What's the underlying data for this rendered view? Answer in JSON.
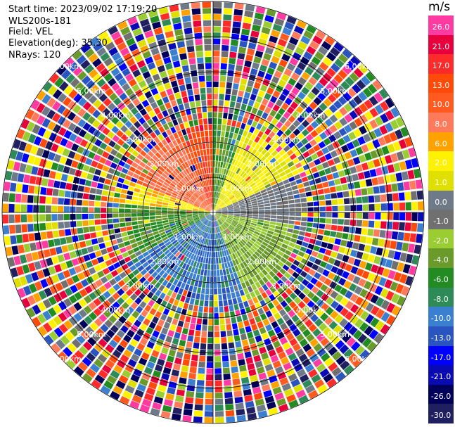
{
  "header": {
    "start_time": "Start time: 2023/09/02 17:19:20",
    "instrument": "WLS200s-181",
    "field": "Field: VEL",
    "elevation": "Elevation(deg): 35.30",
    "nrays": "NRays: 120"
  },
  "colorbar": {
    "unit": "m/s",
    "bins": [
      {
        "label": "26.0",
        "color": "#ff3aa0"
      },
      {
        "label": "21.0",
        "color": "#e8003c"
      },
      {
        "label": "17.0",
        "color": "#ff2a2a"
      },
      {
        "label": "13.0",
        "color": "#ff4a0a"
      },
      {
        "label": "10.0",
        "color": "#ff5a20"
      },
      {
        "label": "8.0",
        "color": "#ff7a5a"
      },
      {
        "label": "6.0",
        "color": "#ffa200"
      },
      {
        "label": "2.0",
        "color": "#fff200"
      },
      {
        "label": "1.0",
        "color": "#e0e000"
      },
      {
        "label": "0.0",
        "color": "#6e7a88"
      },
      {
        "label": "-1.0",
        "color": "#707070"
      },
      {
        "label": "-2.0",
        "color": "#9acd32"
      },
      {
        "label": "-4.0",
        "color": "#6a9a2a"
      },
      {
        "label": "-6.0",
        "color": "#228b22"
      },
      {
        "label": "-8.0",
        "color": "#2e8b57"
      },
      {
        "label": "-10.0",
        "color": "#3a7fd0"
      },
      {
        "label": "-13.0",
        "color": "#2a55c0"
      },
      {
        "label": "-17.0",
        "color": "#0000ff"
      },
      {
        "label": "-21.0",
        "color": "#0a0ab4"
      },
      {
        "label": "-26.0",
        "color": "#00005a"
      },
      {
        "label": "-30.0",
        "color": "#202060"
      }
    ]
  },
  "chart_data": {
    "type": "heatmap",
    "plot": "ppi",
    "field": "VEL",
    "unit": "m/s",
    "n_rays": 120,
    "max_range_km": 6.0,
    "range_rings_km": [
      1,
      2,
      3,
      4,
      5,
      6
    ],
    "range_ring_labels": [
      "1.00km",
      "2.00km",
      "3.00km",
      "4.00km",
      "5.00km",
      "6.00km"
    ],
    "clean_region_range_km": [
      0,
      2.4
    ],
    "sectors": [
      {
        "azimuth_deg": [
          0,
          20
        ],
        "dominant_velocity": [
          -8.0,
          -2.0
        ]
      },
      {
        "azimuth_deg": [
          20,
          65
        ],
        "dominant_velocity": [
          1.0,
          2.0
        ]
      },
      {
        "azimuth_deg": [
          65,
          100
        ],
        "dominant_velocity": [
          -1.0,
          0.0
        ]
      },
      {
        "azimuth_deg": [
          100,
          160
        ],
        "dominant_velocity": [
          -4.0,
          -2.0
        ]
      },
      {
        "azimuth_deg": [
          160,
          240
        ],
        "dominant_velocity": [
          -13.0,
          -8.0
        ]
      },
      {
        "azimuth_deg": [
          240,
          275
        ],
        "dominant_velocity": [
          -6.0,
          -4.0
        ]
      },
      {
        "azimuth_deg": [
          275,
          290
        ],
        "dominant_velocity": [
          1.0,
          6.0
        ]
      },
      {
        "azimuth_deg": [
          290,
          340
        ],
        "dominant_velocity": [
          8.0,
          10.0
        ]
      },
      {
        "azimuth_deg": [
          340,
          360
        ],
        "dominant_velocity": [
          10.0,
          17.0
        ]
      }
    ]
  }
}
